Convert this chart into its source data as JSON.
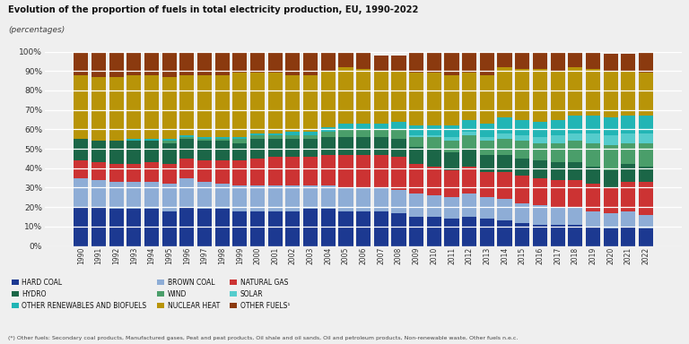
{
  "title": "Evolution of the proportion of fuels in total electricity production, EU, 1990-2022",
  "subtitle": "(percentages)",
  "footnote": "(*) Other fuels: Secondary coal products, Manufactured gases, Peat and peat products, Oil shale and oil sands, Oil and petroleum products, Non-renewable waste, Other fuels n.e.c.",
  "years": [
    1990,
    1991,
    1992,
    1993,
    1994,
    1995,
    1996,
    1997,
    1998,
    1999,
    2000,
    2001,
    2002,
    2003,
    2004,
    2005,
    2006,
    2007,
    2008,
    2009,
    2010,
    2011,
    2012,
    2013,
    2014,
    2015,
    2016,
    2017,
    2018,
    2019,
    2020,
    2021,
    2022
  ],
  "series": {
    "HARD COAL": [
      20,
      20,
      19,
      19,
      19,
      18,
      20,
      19,
      19,
      18,
      18,
      18,
      18,
      19,
      19,
      18,
      18,
      18,
      17,
      15,
      15,
      14,
      15,
      14,
      13,
      12,
      11,
      11,
      11,
      10,
      9,
      10,
      9
    ],
    "BROWN COAL": [
      15,
      14,
      14,
      14,
      14,
      14,
      15,
      14,
      13,
      13,
      13,
      13,
      13,
      12,
      12,
      12,
      12,
      12,
      12,
      12,
      11,
      11,
      12,
      11,
      11,
      10,
      10,
      9,
      9,
      8,
      8,
      8,
      7
    ],
    "NATURAL GAS": [
      9,
      9,
      9,
      9,
      10,
      10,
      10,
      11,
      12,
      13,
      14,
      15,
      15,
      15,
      16,
      17,
      17,
      17,
      17,
      15,
      15,
      14,
      14,
      13,
      14,
      14,
      14,
      14,
      14,
      14,
      13,
      15,
      17
    ],
    "HYDRO": [
      11,
      11,
      12,
      12,
      11,
      11,
      10,
      10,
      10,
      9,
      10,
      9,
      9,
      9,
      9,
      9,
      9,
      9,
      9,
      9,
      9,
      9,
      9,
      9,
      9,
      9,
      9,
      9,
      9,
      9,
      9,
      9,
      8
    ],
    "WIND": [
      0,
      0,
      0,
      0,
      0,
      1,
      1,
      1,
      1,
      2,
      2,
      2,
      2,
      2,
      3,
      4,
      4,
      4,
      5,
      5,
      6,
      6,
      7,
      7,
      8,
      9,
      9,
      10,
      11,
      12,
      13,
      11,
      12
    ],
    "SOLAR": [
      0,
      0,
      0,
      0,
      0,
      0,
      0,
      0,
      0,
      0,
      0,
      0,
      0,
      0,
      0,
      0,
      0,
      0,
      0,
      1,
      1,
      2,
      2,
      2,
      3,
      3,
      3,
      4,
      4,
      5,
      5,
      5,
      5
    ],
    "OTHER RENEWABLES AND BIOFUELS": [
      0,
      0,
      0,
      1,
      1,
      1,
      1,
      1,
      1,
      1,
      1,
      1,
      2,
      2,
      2,
      3,
      3,
      3,
      4,
      5,
      5,
      6,
      6,
      7,
      8,
      8,
      8,
      8,
      9,
      9,
      9,
      9,
      9
    ],
    "NUCLEAR HEAT": [
      33,
      33,
      33,
      33,
      33,
      32,
      31,
      32,
      32,
      33,
      31,
      31,
      29,
      29,
      29,
      29,
      28,
      27,
      26,
      27,
      27,
      26,
      24,
      25,
      26,
      26,
      27,
      25,
      25,
      24,
      24,
      23,
      22
    ],
    "OTHER FUELS¹": [
      12,
      13,
      13,
      12,
      12,
      13,
      12,
      12,
      12,
      11,
      11,
      11,
      12,
      12,
      10,
      8,
      9,
      8,
      8,
      11,
      11,
      12,
      11,
      12,
      8,
      9,
      9,
      10,
      10,
      9,
      9,
      9,
      11
    ]
  },
  "colors": {
    "HARD COAL": "#1c3991",
    "BROWN COAL": "#8eadd6",
    "NATURAL GAS": "#cc3333",
    "HYDRO": "#1b6647",
    "WIND": "#4a9e6a",
    "SOLAR": "#55cccc",
    "OTHER RENEWABLES AND BIOFUELS": "#22b5b5",
    "NUCLEAR HEAT": "#b89408",
    "OTHER FUELS¹": "#8B3A0F"
  },
  "bg_color": "#efefef",
  "bar_width": 0.82,
  "ylim": [
    0,
    100
  ],
  "yticks": [
    0,
    10,
    20,
    30,
    40,
    50,
    60,
    70,
    80,
    90,
    100
  ],
  "legend_order": [
    "HARD COAL",
    "HYDRO",
    "OTHER RENEWABLES AND BIOFUELS",
    "BROWN COAL",
    "WIND",
    "NUCLEAR HEAT",
    "NATURAL GAS",
    "SOLAR",
    "OTHER FUELS¹"
  ]
}
